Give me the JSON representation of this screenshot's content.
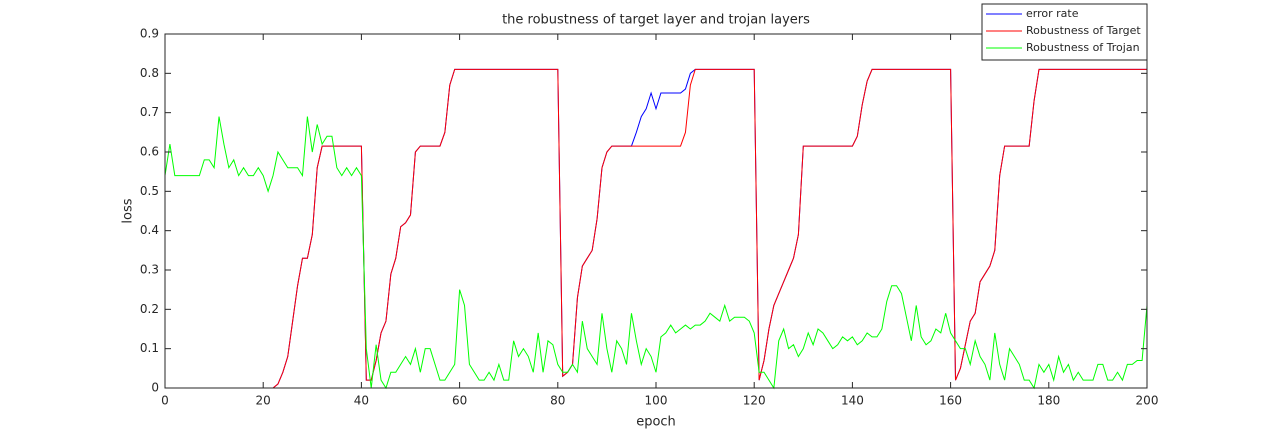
{
  "chart_data": {
    "type": "line",
    "title": "the robustness of target layer and trojan layers",
    "x_label": "epoch",
    "y_label": "loss",
    "xlim": [
      0,
      200
    ],
    "ylim": [
      0,
      0.9
    ],
    "xticks": [
      0,
      20,
      40,
      60,
      80,
      100,
      120,
      140,
      160,
      180,
      200
    ],
    "yticks": [
      0,
      0.1,
      0.2,
      0.3,
      0.4,
      0.5,
      0.6,
      0.7,
      0.8,
      0.9
    ],
    "grid": false,
    "legend": "northeast",
    "x": [
      0,
      1,
      2,
      3,
      4,
      5,
      6,
      7,
      8,
      9,
      10,
      11,
      12,
      13,
      14,
      15,
      16,
      17,
      18,
      19,
      20,
      21,
      22,
      23,
      24,
      25,
      26,
      27,
      28,
      29,
      30,
      31,
      32,
      33,
      34,
      35,
      36,
      37,
      38,
      39,
      40,
      41,
      42,
      43,
      44,
      45,
      46,
      47,
      48,
      49,
      50,
      51,
      52,
      53,
      54,
      55,
      56,
      57,
      58,
      59,
      60,
      61,
      62,
      63,
      64,
      65,
      66,
      67,
      68,
      69,
      70,
      71,
      72,
      73,
      74,
      75,
      76,
      77,
      78,
      79,
      80,
      81,
      82,
      83,
      84,
      85,
      86,
      87,
      88,
      89,
      90,
      91,
      92,
      93,
      94,
      95,
      96,
      97,
      98,
      99,
      100,
      101,
      102,
      103,
      104,
      105,
      106,
      107,
      108,
      109,
      110,
      111,
      112,
      113,
      114,
      115,
      116,
      117,
      118,
      119,
      120,
      121,
      122,
      123,
      124,
      125,
      126,
      127,
      128,
      129,
      130,
      131,
      132,
      133,
      134,
      135,
      136,
      137,
      138,
      139,
      140,
      141,
      142,
      143,
      144,
      145,
      146,
      147,
      148,
      149,
      150,
      151,
      152,
      153,
      154,
      155,
      156,
      157,
      158,
      159,
      160,
      161,
      162,
      163,
      164,
      165,
      166,
      167,
      168,
      169,
      170,
      171,
      172,
      173,
      174,
      175,
      176,
      177,
      178,
      179,
      180,
      181,
      182,
      183,
      184,
      185,
      186,
      187,
      188,
      189,
      190,
      191,
      192,
      193,
      194,
      195,
      196,
      197,
      198,
      199,
      200
    ],
    "series": [
      {
        "name": "error rate",
        "color": "#0000ff",
        "values": [
          0,
          0,
          0,
          0,
          0,
          0,
          0,
          0,
          0,
          0,
          0,
          0,
          0,
          0,
          0,
          0,
          0,
          0,
          0,
          0,
          0,
          0,
          0,
          0.01,
          0.04,
          0.08,
          0.17,
          0.26,
          0.33,
          0.33,
          0.39,
          0.56,
          0.615,
          0.615,
          0.615,
          0.615,
          0.615,
          0.615,
          0.615,
          0.615,
          0.615,
          0.02,
          0.02,
          0.07,
          0.14,
          0.17,
          0.29,
          0.33,
          0.41,
          0.42,
          0.44,
          0.6,
          0.615,
          0.615,
          0.615,
          0.615,
          0.615,
          0.65,
          0.77,
          0.81,
          0.81,
          0.81,
          0.81,
          0.81,
          0.81,
          0.81,
          0.81,
          0.81,
          0.81,
          0.81,
          0.81,
          0.81,
          0.81,
          0.81,
          0.81,
          0.81,
          0.81,
          0.81,
          0.81,
          0.81,
          0.81,
          0.03,
          0.04,
          0.06,
          0.23,
          0.31,
          0.33,
          0.35,
          0.43,
          0.56,
          0.6,
          0.615,
          0.615,
          0.615,
          0.615,
          0.615,
          0.65,
          0.69,
          0.71,
          0.75,
          0.71,
          0.75,
          0.75,
          0.75,
          0.75,
          0.75,
          0.76,
          0.8,
          0.81,
          0.81,
          0.81,
          0.81,
          0.81,
          0.81,
          0.81,
          0.81,
          0.81,
          0.81,
          0.81,
          0.81,
          0.81,
          0.02,
          0.07,
          0.15,
          0.21,
          0.24,
          0.27,
          0.3,
          0.33,
          0.39,
          0.615,
          0.615,
          0.615,
          0.615,
          0.615,
          0.615,
          0.615,
          0.615,
          0.615,
          0.615,
          0.615,
          0.64,
          0.72,
          0.78,
          0.81,
          0.81,
          0.81,
          0.81,
          0.81,
          0.81,
          0.81,
          0.81,
          0.81,
          0.81,
          0.81,
          0.81,
          0.81,
          0.81,
          0.81,
          0.81,
          0.81,
          0.02,
          0.05,
          0.11,
          0.17,
          0.19,
          0.27,
          0.29,
          0.31,
          0.35,
          0.54,
          0.615,
          0.615,
          0.615,
          0.615,
          0.615,
          0.615,
          0.73,
          0.81,
          0.81,
          0.81,
          0.81,
          0.81,
          0.81,
          0.81,
          0.81,
          0.81,
          0.81,
          0.81,
          0.81,
          0.81,
          0.81,
          0.81,
          0.81,
          0.81,
          0.81,
          0.81,
          0.81,
          0.81,
          0.81,
          0.81
        ]
      },
      {
        "name": "Robustness of Target",
        "color": "#ff0000",
        "values": [
          0,
          0,
          0,
          0,
          0,
          0,
          0,
          0,
          0,
          0,
          0,
          0,
          0,
          0,
          0,
          0,
          0,
          0,
          0,
          0,
          0,
          0,
          0,
          0.01,
          0.04,
          0.08,
          0.17,
          0.26,
          0.33,
          0.33,
          0.39,
          0.56,
          0.615,
          0.615,
          0.615,
          0.615,
          0.615,
          0.615,
          0.615,
          0.615,
          0.615,
          0.02,
          0.02,
          0.07,
          0.14,
          0.17,
          0.29,
          0.33,
          0.41,
          0.42,
          0.44,
          0.6,
          0.615,
          0.615,
          0.615,
          0.615,
          0.615,
          0.65,
          0.77,
          0.81,
          0.81,
          0.81,
          0.81,
          0.81,
          0.81,
          0.81,
          0.81,
          0.81,
          0.81,
          0.81,
          0.81,
          0.81,
          0.81,
          0.81,
          0.81,
          0.81,
          0.81,
          0.81,
          0.81,
          0.81,
          0.81,
          0.03,
          0.04,
          0.06,
          0.23,
          0.31,
          0.33,
          0.35,
          0.43,
          0.56,
          0.6,
          0.615,
          0.615,
          0.615,
          0.615,
          0.615,
          0.615,
          0.615,
          0.615,
          0.615,
          0.615,
          0.615,
          0.615,
          0.615,
          0.615,
          0.615,
          0.65,
          0.77,
          0.81,
          0.81,
          0.81,
          0.81,
          0.81,
          0.81,
          0.81,
          0.81,
          0.81,
          0.81,
          0.81,
          0.81,
          0.81,
          0.02,
          0.07,
          0.15,
          0.21,
          0.24,
          0.27,
          0.3,
          0.33,
          0.39,
          0.615,
          0.615,
          0.615,
          0.615,
          0.615,
          0.615,
          0.615,
          0.615,
          0.615,
          0.615,
          0.615,
          0.64,
          0.72,
          0.78,
          0.81,
          0.81,
          0.81,
          0.81,
          0.81,
          0.81,
          0.81,
          0.81,
          0.81,
          0.81,
          0.81,
          0.81,
          0.81,
          0.81,
          0.81,
          0.81,
          0.81,
          0.02,
          0.05,
          0.11,
          0.17,
          0.19,
          0.27,
          0.29,
          0.31,
          0.35,
          0.54,
          0.615,
          0.615,
          0.615,
          0.615,
          0.615,
          0.615,
          0.73,
          0.81,
          0.81,
          0.81,
          0.81,
          0.81,
          0.81,
          0.81,
          0.81,
          0.81,
          0.81,
          0.81,
          0.81,
          0.81,
          0.81,
          0.81,
          0.81,
          0.81,
          0.81,
          0.81,
          0.81,
          0.81,
          0.81,
          0.81
        ]
      },
      {
        "name": "Robustness of Trojan",
        "color": "#00ff00",
        "values": [
          0.54,
          0.62,
          0.54,
          0.54,
          0.54,
          0.54,
          0.54,
          0.54,
          0.58,
          0.58,
          0.56,
          0.69,
          0.62,
          0.56,
          0.58,
          0.54,
          0.56,
          0.54,
          0.54,
          0.56,
          0.54,
          0.5,
          0.54,
          0.6,
          0.58,
          0.56,
          0.56,
          0.56,
          0.54,
          0.69,
          0.6,
          0.67,
          0.62,
          0.64,
          0.64,
          0.56,
          0.54,
          0.56,
          0.54,
          0.56,
          0.54,
          0.1,
          0,
          0.11,
          0.02,
          0,
          0.04,
          0.04,
          0.06,
          0.08,
          0.06,
          0.1,
          0.04,
          0.1,
          0.1,
          0.06,
          0.02,
          0.02,
          0.04,
          0.06,
          0.25,
          0.21,
          0.06,
          0.04,
          0.02,
          0.02,
          0.04,
          0.02,
          0.06,
          0.02,
          0.02,
          0.12,
          0.08,
          0.1,
          0.08,
          0.04,
          0.14,
          0.04,
          0.12,
          0.11,
          0.06,
          0.04,
          0.04,
          0.06,
          0.04,
          0.17,
          0.1,
          0.08,
          0.06,
          0.19,
          0.1,
          0.04,
          0.12,
          0.1,
          0.06,
          0.19,
          0.12,
          0.06,
          0.1,
          0.08,
          0.04,
          0.13,
          0.14,
          0.16,
          0.14,
          0.15,
          0.16,
          0.15,
          0.16,
          0.16,
          0.17,
          0.19,
          0.18,
          0.17,
          0.21,
          0.17,
          0.18,
          0.18,
          0.18,
          0.17,
          0.14,
          0.04,
          0.04,
          0.02,
          0,
          0.12,
          0.15,
          0.1,
          0.11,
          0.08,
          0.1,
          0.14,
          0.11,
          0.15,
          0.14,
          0.12,
          0.1,
          0.11,
          0.13,
          0.12,
          0.13,
          0.11,
          0.12,
          0.14,
          0.13,
          0.13,
          0.15,
          0.22,
          0.26,
          0.26,
          0.24,
          0.18,
          0.12,
          0.21,
          0.13,
          0.11,
          0.12,
          0.15,
          0.14,
          0.19,
          0.14,
          0.12,
          0.1,
          0.1,
          0.06,
          0.12,
          0.08,
          0.06,
          0.02,
          0.14,
          0.06,
          0.02,
          0.1,
          0.08,
          0.06,
          0.02,
          0.02,
          0,
          0.06,
          0.04,
          0.06,
          0.02,
          0.08,
          0.04,
          0.06,
          0.02,
          0.04,
          0.02,
          0.02,
          0.02,
          0.06,
          0.06,
          0.02,
          0.02,
          0.04,
          0.02,
          0.06,
          0.06,
          0.07,
          0.07,
          0.21
        ]
      }
    ]
  }
}
